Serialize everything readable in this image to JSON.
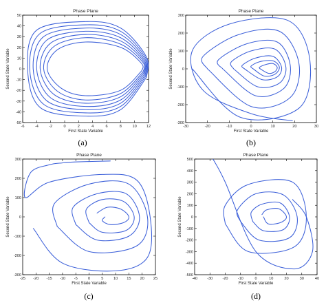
{
  "style": {
    "line_color": "#3b5fd9",
    "axis_color": "#000000",
    "background": "#ffffff"
  },
  "chart_data": [
    {
      "type": "line",
      "caption": "(a)",
      "title": "Phase Plane",
      "xlabel": "First State Variable",
      "ylabel": "Second State Variable",
      "xlim": [
        -6,
        12
      ],
      "ylim": [
        -50,
        50
      ],
      "xticks": [
        -6,
        -4,
        -2,
        0,
        2,
        4,
        6,
        8,
        10,
        12
      ],
      "yticks": [
        -50,
        -40,
        -30,
        -20,
        -10,
        0,
        10,
        20,
        30,
        40,
        50
      ],
      "grid": false,
      "series": [
        {
          "x": [
            11,
            8,
            3,
            -0.5,
            -2.5,
            -1,
            3,
            8,
            11,
            11
          ],
          "y": [
            -2,
            -20,
            -25,
            -18,
            0,
            18,
            25,
            20,
            5,
            -2
          ]
        },
        {
          "x": [
            11.2,
            8,
            3,
            -1,
            -3,
            -1.5,
            3,
            8,
            11.2,
            11.2
          ],
          "y": [
            -3,
            -23,
            -29,
            -21,
            0,
            21,
            29,
            23,
            6,
            -3
          ]
        },
        {
          "x": [
            11.3,
            8,
            3,
            -1.5,
            -3.5,
            -2,
            3,
            8,
            11.3,
            11.3
          ],
          "y": [
            -4,
            -26,
            -32,
            -24,
            0,
            24,
            32,
            26,
            7,
            -4
          ]
        },
        {
          "x": [
            11.4,
            8,
            3,
            -2,
            -4,
            -2.5,
            3,
            8,
            11.4,
            11.4
          ],
          "y": [
            -5,
            -29,
            -35,
            -27,
            0,
            27,
            35,
            29,
            8,
            -5
          ]
        },
        {
          "x": [
            11.5,
            8,
            3,
            -2.5,
            -4.5,
            -3,
            3,
            8,
            11.5,
            11.5
          ],
          "y": [
            -6,
            -32,
            -38,
            -30,
            0,
            30,
            38,
            32,
            9,
            -6
          ]
        },
        {
          "x": [
            11.6,
            8,
            3,
            -3,
            -5,
            -3.5,
            3,
            8,
            11.6,
            11.6
          ],
          "y": [
            -7,
            -35,
            -41,
            -33,
            0,
            33,
            41,
            35,
            10,
            -7
          ]
        },
        {
          "x": [
            11.7,
            8,
            3,
            -3.5,
            -5.3,
            -4,
            3,
            8,
            11.7,
            11.7
          ],
          "y": [
            -8,
            -38,
            -44,
            -36,
            0,
            36,
            44,
            38,
            11,
            -8
          ]
        }
      ]
    },
    {
      "type": "line",
      "caption": "(b)",
      "title": "Phase Plane",
      "xlabel": "First State Variable",
      "ylabel": "Second State Variable",
      "xlim": [
        -30,
        30
      ],
      "ylim": [
        -300,
        300
      ],
      "xticks": [
        -30,
        -20,
        -10,
        0,
        10,
        20,
        30
      ],
      "yticks": [
        -300,
        -200,
        -100,
        0,
        100,
        200,
        300
      ],
      "grid": false,
      "series": [
        {
          "x": [
            4,
            8,
            11,
            12,
            10,
            7,
            4,
            4
          ],
          "y": [
            2,
            -25,
            -15,
            10,
            30,
            25,
            10,
            2
          ]
        },
        {
          "x": [
            1,
            6,
            11,
            13,
            10,
            4,
            0,
            1
          ],
          "y": [
            0,
            -40,
            -30,
            10,
            45,
            40,
            15,
            0
          ]
        },
        {
          "x": [
            -3,
            5,
            12,
            14,
            10,
            2,
            -4,
            -3
          ],
          "y": [
            0,
            -60,
            -45,
            10,
            70,
            60,
            20,
            0
          ]
        },
        {
          "x": [
            -8,
            3,
            13,
            16,
            11,
            0,
            -9,
            -8
          ],
          "y": [
            0,
            -100,
            -80,
            10,
            110,
            100,
            40,
            0
          ]
        },
        {
          "x": [
            -13,
            2,
            15,
            18,
            12,
            -2,
            -15,
            -13
          ],
          "y": [
            0,
            -150,
            -110,
            20,
            150,
            140,
            50,
            0
          ]
        },
        {
          "x": [
            -20,
            0,
            18,
            22,
            13,
            -6,
            -22,
            -20
          ],
          "y": [
            0,
            -210,
            -160,
            30,
            210,
            190,
            70,
            0
          ]
        },
        {
          "x": [
            -27,
            -5,
            22,
            27,
            17,
            -10,
            -27,
            -22,
            0,
            19
          ],
          "y": [
            0,
            -270,
            -220,
            50,
            270,
            250,
            100,
            -120,
            -250,
            -290
          ]
        }
      ]
    },
    {
      "type": "line",
      "caption": "(c)",
      "title": "Phase Plane",
      "xlabel": "First State Variable",
      "ylabel": "Second State Variable",
      "xlim": [
        -25,
        25
      ],
      "ylim": [
        -300,
        300
      ],
      "xticks": [
        -25,
        -20,
        -15,
        -10,
        -5,
        0,
        5,
        10,
        15,
        20,
        25
      ],
      "yticks": [
        -300,
        -200,
        -100,
        0,
        100,
        200,
        300
      ],
      "grid": false,
      "series": [
        {
          "x": [
            6,
            5,
            8,
            13,
            15,
            12,
            7,
            3
          ],
          "y": [
            0,
            -20,
            -40,
            -30,
            0,
            40,
            50,
            20
          ]
        },
        {
          "x": [
            0,
            5,
            14,
            17,
            13,
            5,
            -1,
            0
          ],
          "y": [
            -30,
            -80,
            -70,
            0,
            80,
            90,
            40,
            -30
          ]
        },
        {
          "x": [
            -5,
            3,
            15,
            19,
            14,
            3,
            -6,
            -5
          ],
          "y": [
            -40,
            -120,
            -100,
            0,
            120,
            120,
            50,
            -40
          ]
        },
        {
          "x": [
            -12,
            0,
            18,
            22,
            15,
            0,
            -13,
            -12
          ],
          "y": [
            -50,
            -180,
            -150,
            0,
            170,
            170,
            70,
            -50
          ]
        },
        {
          "x": [
            -21,
            -10,
            10,
            22,
            23,
            18,
            5,
            -15,
            -24,
            -22,
            -15,
            -10,
            -5,
            8
          ],
          "y": [
            -60,
            -240,
            -280,
            -210,
            0,
            190,
            220,
            180,
            100,
            230,
            270,
            280,
            285,
            290
          ]
        }
      ]
    },
    {
      "type": "line",
      "caption": "(d)",
      "title": "Phase Plane",
      "xlabel": "First State Variable",
      "ylabel": "Second State Variable",
      "xlim": [
        -40,
        40
      ],
      "ylim": [
        -500,
        500
      ],
      "xticks": [
        -40,
        -30,
        -20,
        -10,
        0,
        10,
        20,
        30,
        40
      ],
      "yticks": [
        -500,
        -400,
        -300,
        -200,
        -100,
        0,
        100,
        200,
        300,
        400,
        500
      ],
      "grid": false,
      "series": [
        {
          "x": [
            5,
            8,
            16,
            20,
            15,
            7,
            4
          ],
          "y": [
            0,
            -60,
            -50,
            0,
            70,
            60,
            20
          ]
        },
        {
          "x": [
            -2,
            5,
            18,
            22,
            16,
            4,
            -3,
            -2
          ],
          "y": [
            -40,
            -120,
            -110,
            0,
            120,
            110,
            40,
            -40
          ]
        },
        {
          "x": [
            -10,
            2,
            22,
            27,
            18,
            0,
            -12,
            -10
          ],
          "y": [
            -40,
            -200,
            -180,
            0,
            190,
            200,
            60,
            -40
          ]
        },
        {
          "x": [
            -20,
            -5,
            25,
            33,
            24,
            -5,
            -20,
            -20
          ],
          "y": [
            -60,
            -300,
            -260,
            0,
            300,
            280,
            100,
            -60
          ]
        },
        {
          "x": [
            -28,
            -20,
            0,
            25,
            37,
            33,
            24
          ],
          "y": [
            500,
            300,
            -300,
            -450,
            -300,
            0,
            150
          ]
        }
      ]
    }
  ]
}
